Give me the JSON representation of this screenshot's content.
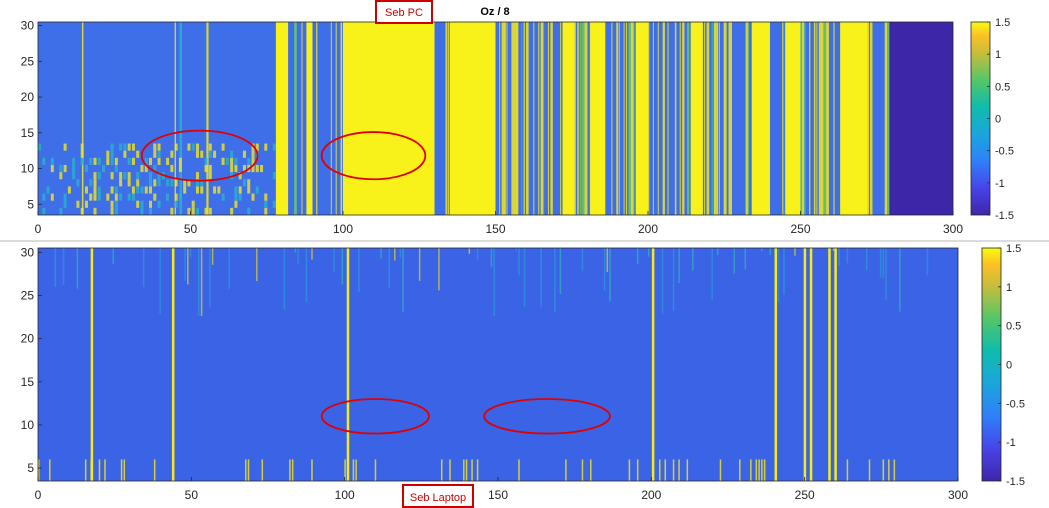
{
  "chart_data": [
    {
      "type": "heatmap",
      "title": "Oz / 8",
      "xlabel": "",
      "ylabel": "",
      "xlim": [
        0,
        300
      ],
      "ylim": [
        3.5,
        30.5
      ],
      "xticks": [
        0,
        50,
        100,
        150,
        200,
        250,
        300
      ],
      "yticks": [
        5,
        10,
        15,
        20,
        25,
        30
      ],
      "colorbar": {
        "clim": [
          -1.5,
          1.5
        ],
        "ticks": [
          1.5,
          1,
          0.5,
          0,
          -0.5,
          -1,
          -1.5
        ],
        "colormap": "parula"
      },
      "data_extent_x": [
        0,
        279
      ],
      "empty_fill": "#3e26a8",
      "bright_bands": [
        {
          "x": [
            78,
            82
          ]
        },
        {
          "x": [
            88,
            90
          ]
        },
        {
          "x": [
            100,
            130
          ]
        },
        {
          "x": [
            135,
            150
          ]
        },
        {
          "x": [
            172,
            176
          ]
        },
        {
          "x": [
            181,
            186
          ]
        },
        {
          "x": [
            196,
            200
          ]
        },
        {
          "x": [
            214,
            218
          ]
        },
        {
          "x": [
            234,
            240
          ]
        },
        {
          "x": [
            245,
            250
          ]
        },
        {
          "x": [
            263,
            272
          ]
        }
      ],
      "annotations": [
        {
          "text": "Seb PC",
          "type": "label"
        },
        {
          "type": "ellipse",
          "cx": 53,
          "cy": 11.8,
          "rx": 19,
          "ry": 3.5
        },
        {
          "type": "ellipse",
          "cx": 110,
          "cy": 11.8,
          "rx": 17,
          "ry": 3.3
        }
      ]
    },
    {
      "type": "heatmap",
      "title": "",
      "xlabel": "",
      "ylabel": "",
      "xlim": [
        0,
        300
      ],
      "ylim": [
        3.5,
        30.5
      ],
      "xticks": [
        0,
        50,
        100,
        150,
        200,
        250,
        300
      ],
      "yticks": [
        5,
        10,
        15,
        20,
        25,
        30
      ],
      "colorbar": {
        "clim": [
          -1.5,
          1.5
        ],
        "ticks": [
          1.5,
          1,
          0.5,
          0,
          -0.5,
          -1,
          -1.5
        ],
        "colormap": "parula"
      },
      "data_extent_x": [
        0,
        300
      ],
      "bright_lines": [
        {
          "x": 17.5
        },
        {
          "x": 44
        },
        {
          "x": 101
        },
        {
          "x": 200.5
        },
        {
          "x": 240.5
        },
        {
          "x": 250
        },
        {
          "x": 252
        },
        {
          "x": 258
        },
        {
          "x": 260
        }
      ],
      "annotations": [
        {
          "text": "Seb Laptop",
          "type": "label"
        },
        {
          "type": "ellipse",
          "cx": 110,
          "cy": 11,
          "rx": 17.5,
          "ry": 2
        },
        {
          "type": "ellipse",
          "cx": 166,
          "cy": 11,
          "rx": 20.5,
          "ry": 2
        }
      ]
    }
  ],
  "labels": {
    "top": "Seb PC",
    "bottom": "Seb Laptop"
  }
}
